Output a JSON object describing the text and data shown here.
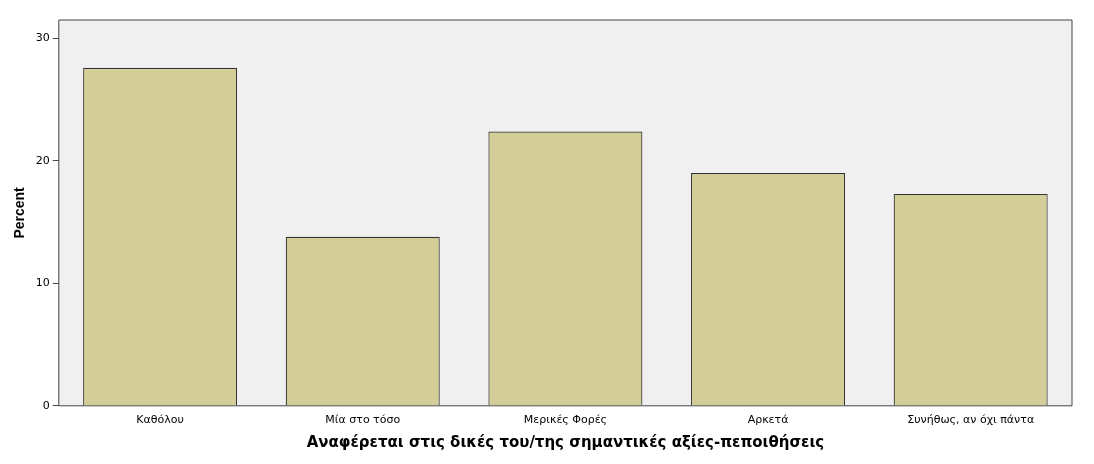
{
  "chart_data": {
    "type": "bar",
    "xlabel": "Αναφέρεται στις δικές του/της σημαντικές αξίες-πεποιθήσεις",
    "ylabel": "Percent",
    "categories": [
      "Καθόλου",
      "Μία στο τόσο",
      "Μερικές Φορές",
      "Αρκετά",
      "Συνήθως, αν όχι πάντα"
    ],
    "values": [
      27.6,
      13.8,
      22.4,
      19.0,
      17.3
    ],
    "color": "#d3ce97",
    "ylim": [
      0,
      31.5
    ],
    "yticks": [
      0,
      10,
      20,
      30
    ],
    "grid": false,
    "legend": false
  }
}
